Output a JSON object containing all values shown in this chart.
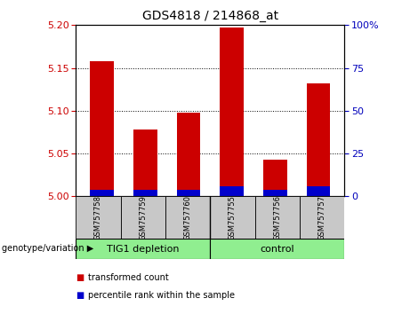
{
  "title": "GDS4818 / 214868_at",
  "samples": [
    "GSM757758",
    "GSM757759",
    "GSM757760",
    "GSM757755",
    "GSM757756",
    "GSM757757"
  ],
  "transformed_counts": [
    5.15,
    5.07,
    5.09,
    5.185,
    5.035,
    5.12
  ],
  "percentile_ranks_pct": [
    4,
    4,
    4,
    6,
    4,
    6
  ],
  "ylim_left": [
    5.0,
    5.2
  ],
  "ylim_right": [
    0,
    100
  ],
  "yticks_left": [
    5.0,
    5.05,
    5.1,
    5.15,
    5.2
  ],
  "yticks_right": [
    0,
    25,
    50,
    75,
    100
  ],
  "red_color": "#CC0000",
  "blue_color": "#0000CC",
  "bg_color": "#C8C8C8",
  "green_color": "#90EE90",
  "left_label_color": "#CC0000",
  "right_label_color": "#0000BB",
  "legend_red": "transformed count",
  "legend_blue": "percentile rank within the sample",
  "genotype_label": "genotype/variation",
  "group1_label": "TIG1 depletion",
  "group2_label": "control"
}
